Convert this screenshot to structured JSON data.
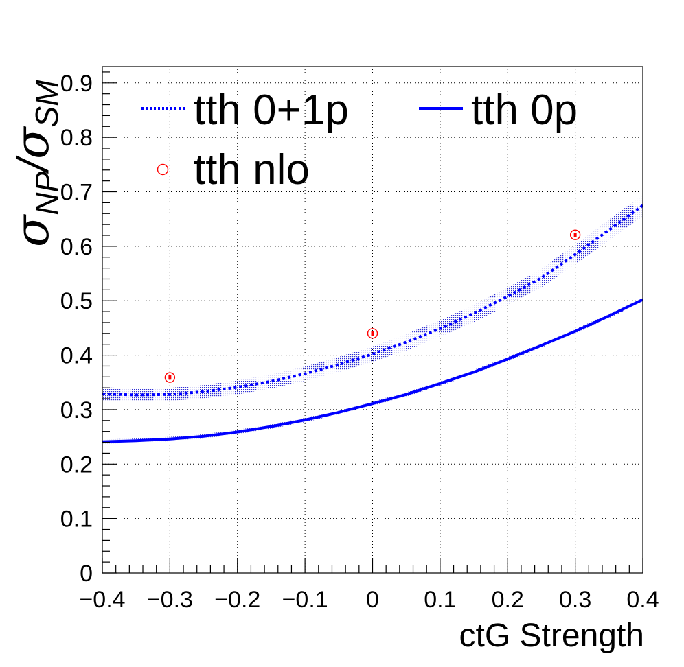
{
  "chart_data": {
    "type": "line",
    "xlabel": "ctG Strength",
    "ylabel": {
      "symbol_num": "σ",
      "sub_num": "NP",
      "slash": "/",
      "symbol_den": "σ",
      "sub_den": "SM"
    },
    "xlim": [
      -0.4,
      0.4
    ],
    "ylim": [
      0,
      0.93
    ],
    "x_ticks": [
      -0.4,
      -0.3,
      -0.2,
      -0.1,
      0,
      0.1,
      0.2,
      0.3,
      0.4
    ],
    "x_tick_labels": [
      "−0.4",
      "−0.3",
      "−0.2",
      "−0.1",
      "0",
      "0.1",
      "0.2",
      "0.3",
      "0.4"
    ],
    "y_ticks": [
      0,
      0.1,
      0.2,
      0.3,
      0.4,
      0.5,
      0.6,
      0.7,
      0.8,
      0.9
    ],
    "y_tick_labels": [
      "0",
      "0.1",
      "0.2",
      "0.3",
      "0.4",
      "0.5",
      "0.6",
      "0.7",
      "0.8",
      "0.9"
    ],
    "grid": true,
    "legend_position": "top",
    "series": [
      {
        "name": "tth 0+1p",
        "style": "dotted",
        "color": "#0000ff",
        "x": [
          -0.4,
          -0.35,
          -0.3,
          -0.25,
          -0.2,
          -0.15,
          -0.1,
          -0.05,
          0,
          0.05,
          0.1,
          0.15,
          0.2,
          0.25,
          0.3,
          0.35,
          0.4
        ],
        "y": [
          0.329,
          0.327,
          0.328,
          0.333,
          0.341,
          0.352,
          0.366,
          0.383,
          0.402,
          0.424,
          0.449,
          0.477,
          0.508,
          0.542,
          0.585,
          0.63,
          0.675
        ],
        "band_halfwidth": [
          0.012,
          0.012,
          0.012,
          0.012,
          0.013,
          0.013,
          0.013,
          0.014,
          0.014,
          0.015,
          0.015,
          0.016,
          0.016,
          0.017,
          0.018,
          0.019,
          0.02
        ]
      },
      {
        "name": "tth 0p",
        "style": "solid",
        "color": "#0000ff",
        "x": [
          -0.4,
          -0.35,
          -0.3,
          -0.25,
          -0.2,
          -0.15,
          -0.1,
          -0.05,
          0,
          0.05,
          0.1,
          0.15,
          0.2,
          0.25,
          0.3,
          0.35,
          0.4
        ],
        "y": [
          0.241,
          0.243,
          0.246,
          0.251,
          0.259,
          0.269,
          0.281,
          0.295,
          0.311,
          0.328,
          0.348,
          0.369,
          0.393,
          0.418,
          0.444,
          0.472,
          0.502
        ],
        "band_halfwidth": [
          0.004,
          0.004,
          0.004,
          0.004,
          0.004,
          0.004,
          0.004,
          0.004,
          0.004,
          0.004,
          0.004,
          0.004,
          0.004,
          0.004,
          0.004,
          0.004,
          0.004
        ]
      }
    ],
    "points": {
      "name": "tth nlo",
      "color": "#ff0000",
      "x": [
        -0.3,
        0,
        0.3
      ],
      "y": [
        0.359,
        0.44,
        0.621
      ],
      "yerr": [
        0.004,
        0.004,
        0.004
      ]
    },
    "legend": [
      {
        "label": "tth 0+1p",
        "style": "dotted"
      },
      {
        "label": "tth 0p",
        "style": "solid"
      },
      {
        "label": "tth nlo",
        "style": "marker"
      }
    ]
  }
}
